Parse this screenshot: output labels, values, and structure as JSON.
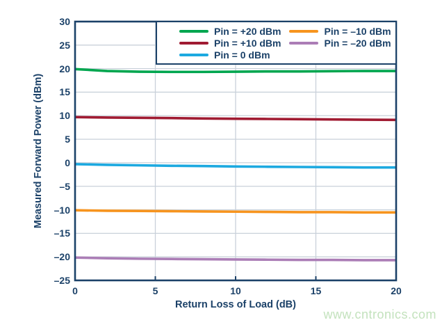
{
  "chart_data": {
    "type": "line",
    "title": "",
    "xlabel": "Return Loss of Load (dB)",
    "ylabel": "Measured Forward Power (dBm)",
    "xlim": [
      0,
      20
    ],
    "ylim": [
      -25,
      30
    ],
    "xticks": [
      0,
      5,
      10,
      15,
      20
    ],
    "yticks": [
      30,
      25,
      20,
      15,
      10,
      5,
      0,
      -5,
      -10,
      -15,
      -20,
      -25
    ],
    "xtick_labels": [
      "0",
      "5",
      "10",
      "15",
      "20"
    ],
    "ytick_labels": [
      "30",
      "25",
      "20",
      "15",
      "10",
      "5",
      "0",
      "–5",
      "–10",
      "–15",
      "–20",
      "–25"
    ],
    "grid": true,
    "legend_position": "top-right",
    "x": [
      0,
      2,
      4,
      6,
      8,
      10,
      12,
      14,
      16,
      18,
      20
    ],
    "series": [
      {
        "name": "Pin = +20 dBm",
        "color": "#00A64F",
        "values": [
          19.9,
          19.5,
          19.35,
          19.3,
          19.3,
          19.35,
          19.4,
          19.4,
          19.45,
          19.5,
          19.5
        ]
      },
      {
        "name": "Pin = +10 dBm",
        "color": "#A01B32",
        "values": [
          9.7,
          9.6,
          9.55,
          9.5,
          9.4,
          9.35,
          9.3,
          9.25,
          9.2,
          9.15,
          9.1
        ]
      },
      {
        "name": "Pin = 0 dBm",
        "color": "#1CA9E0",
        "values": [
          -0.3,
          -0.45,
          -0.55,
          -0.65,
          -0.7,
          -0.8,
          -0.85,
          -0.9,
          -0.95,
          -1.0,
          -1.0
        ]
      },
      {
        "name": "Pin = –10 dBm",
        "color": "#F7941E",
        "values": [
          -10.1,
          -10.2,
          -10.25,
          -10.3,
          -10.35,
          -10.4,
          -10.45,
          -10.5,
          -10.5,
          -10.55,
          -10.55
        ]
      },
      {
        "name": "Pin = –20 dBm",
        "color": "#AB7DB6",
        "values": [
          -20.15,
          -20.3,
          -20.4,
          -20.45,
          -20.5,
          -20.55,
          -20.6,
          -20.65,
          -20.65,
          -20.7,
          -20.7
        ]
      }
    ]
  },
  "watermark": {
    "text": "www.cntronics.com",
    "color": "#C3E2BD"
  },
  "colors": {
    "axis": "#1B4168",
    "grid": "#C9D1DA",
    "background": "#FFFFFF"
  }
}
